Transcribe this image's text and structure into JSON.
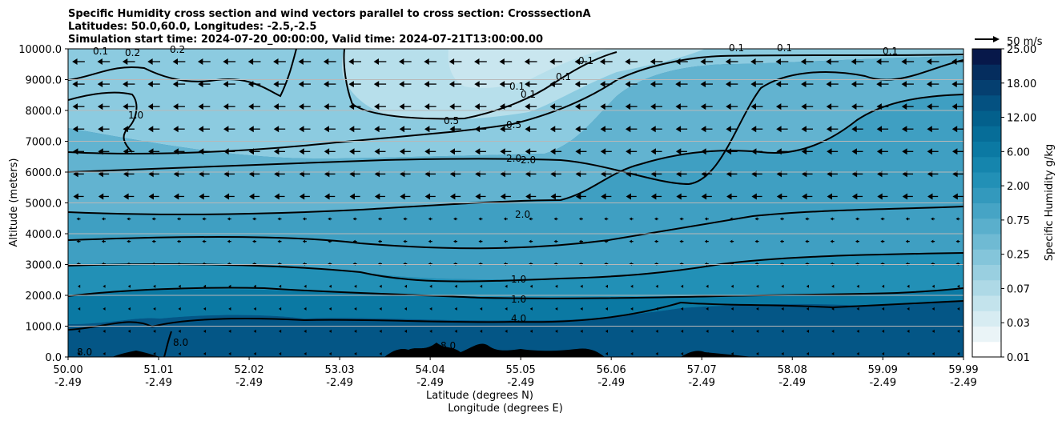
{
  "chart_data": {
    "type": "filled-contour",
    "title": [
      "Specific Humidity cross section and wind vectors parallel to cross section: CrosssectionA",
      "Latitudes: 50.0,60.0, Longitudes: -2.5,-2.5",
      "Simulation start time: 2024-07-20_00:00:00, Valid time: 2024-07-21T13:00:00.00"
    ],
    "ylabel": "Altitude (meters)",
    "xlabel_lines": [
      "Latitude (degrees N)",
      "Longitude (degrees E)"
    ],
    "ylim": [
      0,
      10000
    ],
    "y_ticks": [
      {
        "value": 0,
        "label": "0.0"
      },
      {
        "value": 1000,
        "label": "1000.0"
      },
      {
        "value": 2000,
        "label": "2000.0"
      },
      {
        "value": 3000,
        "label": "3000.0"
      },
      {
        "value": 4000,
        "label": "4000.0"
      },
      {
        "value": 5000,
        "label": "5000.0"
      },
      {
        "value": 6000,
        "label": "6000.0"
      },
      {
        "value": 7000,
        "label": "7000.0"
      },
      {
        "value": 8000,
        "label": "8000.0"
      },
      {
        "value": 9000,
        "label": "9000.0"
      },
      {
        "value": 10000,
        "label": "10000.0"
      }
    ],
    "x_ticks": [
      {
        "lat": "50.00",
        "lon": "-2.49"
      },
      {
        "lat": "51.01",
        "lon": "-2.49"
      },
      {
        "lat": "52.02",
        "lon": "-2.49"
      },
      {
        "lat": "53.03",
        "lon": "-2.49"
      },
      {
        "lat": "54.04",
        "lon": "-2.49"
      },
      {
        "lat": "55.05",
        "lon": "-2.49"
      },
      {
        "lat": "56.06",
        "lon": "-2.49"
      },
      {
        "lat": "57.07",
        "lon": "-2.49"
      },
      {
        "lat": "58.08",
        "lon": "-2.49"
      },
      {
        "lat": "59.09",
        "lon": "-2.49"
      },
      {
        "lat": "59.99",
        "lon": "-2.49"
      }
    ],
    "colorbar": {
      "label": "Specific Humidity g/kg",
      "tick_labels": [
        "0.01",
        "0.03",
        "0.07",
        "0.25",
        "0.75",
        "2.00",
        "6.00",
        "12.00",
        "18.00",
        "25.00"
      ],
      "levels": 20,
      "colors": [
        "#ffffff",
        "#eaf4f7",
        "#d7ecf2",
        "#c3e3ec",
        "#aed9e6",
        "#99cfe0",
        "#84c5da",
        "#6fbad3",
        "#5aafcc",
        "#46a4c5",
        "#3399bd",
        "#2290b6",
        "#1585ad",
        "#0b79a3",
        "#066d98",
        "#03608c",
        "#045181",
        "#053f70",
        "#052d5e",
        "#07184a"
      ]
    },
    "quiver_key": {
      "label": "50 m/s"
    },
    "contour_labels": [
      "0.1",
      "0.1",
      "0.1",
      "0.1",
      "0.1",
      "0.1",
      "0.1",
      "0.1",
      "0.2",
      "0.2",
      "0.5",
      "0.5",
      "1.0",
      "1.0",
      "2.0",
      "2.0",
      "2.0",
      "4.0",
      "8.0",
      "8.0",
      "8.0",
      "1.0"
    ],
    "field_note": "Specific humidity decreases with altitude; dry region aloft between 54 and 57 degrees N; wind vectors mostly pointing toward lower latitude (southward) above 4000 m"
  }
}
